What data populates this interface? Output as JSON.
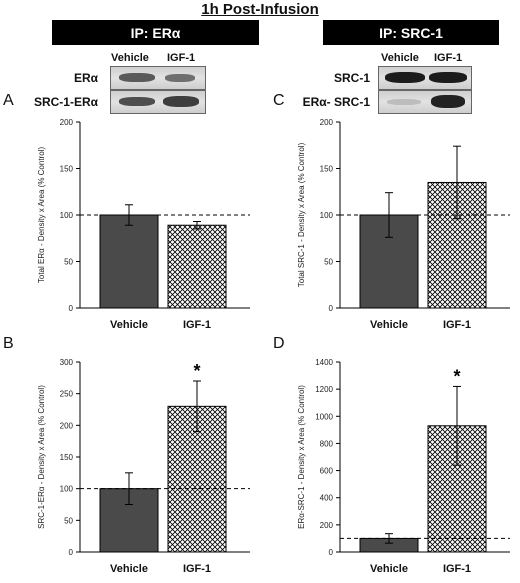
{
  "figure": {
    "title": "1h Post-Infusion",
    "left": {
      "ip_label": "IP: ERα",
      "lane_labels": [
        "Vehicle",
        "IGF-1"
      ],
      "blot_labels": [
        "ERα",
        "SRC-1-ERα"
      ]
    },
    "right": {
      "ip_label": "IP: SRC-1",
      "lane_labels": [
        "Vehicle",
        "IGF-1"
      ],
      "blot_labels": [
        "SRC-1",
        "ERα- SRC-1"
      ]
    },
    "panel_letters": [
      "A",
      "C",
      "B",
      "D"
    ]
  },
  "colors": {
    "vehicle_fill": "#4a4a4a",
    "igf_hatch": "#000000",
    "axis": "#000000"
  },
  "chart_data": [
    {
      "panel": "A",
      "type": "bar",
      "categories": [
        "Vehicle",
        "IGF-1"
      ],
      "values": [
        100,
        89
      ],
      "errors": [
        11,
        4
      ],
      "ylabel": "Total ERα - Density x Area (% Control)",
      "ylim": [
        0,
        200
      ],
      "yticks": [
        0,
        50,
        100,
        150,
        200
      ],
      "reference_line": 100,
      "annotations": [
        "",
        ""
      ]
    },
    {
      "panel": "C",
      "type": "bar",
      "categories": [
        "Vehicle",
        "IGF-1"
      ],
      "values": [
        100,
        135
      ],
      "errors": [
        24,
        39
      ],
      "ylabel": "Total SRC-1 - Density x Area (% Control)",
      "ylim": [
        0,
        200
      ],
      "yticks": [
        0,
        50,
        100,
        150,
        200
      ],
      "reference_line": 100,
      "annotations": [
        "",
        ""
      ]
    },
    {
      "panel": "B",
      "type": "bar",
      "categories": [
        "Vehicle",
        "IGF-1"
      ],
      "values": [
        100,
        230
      ],
      "errors": [
        25,
        40
      ],
      "ylabel": "SRC-1-ERα - Density x Area (% Control)",
      "ylim": [
        0,
        300
      ],
      "yticks": [
        0,
        50,
        100,
        150,
        200,
        250,
        300
      ],
      "reference_line": 100,
      "annotations": [
        "",
        "*"
      ]
    },
    {
      "panel": "D",
      "type": "bar",
      "categories": [
        "Vehicle",
        "IGF-1"
      ],
      "values": [
        100,
        930
      ],
      "errors": [
        35,
        290
      ],
      "ylabel": "ERα-SRC-1 - Density x Area (% Control)",
      "ylim": [
        0,
        1400
      ],
      "yticks": [
        0,
        200,
        400,
        600,
        800,
        1000,
        1200,
        1400
      ],
      "reference_line": 100,
      "annotations": [
        "",
        "*"
      ]
    }
  ]
}
